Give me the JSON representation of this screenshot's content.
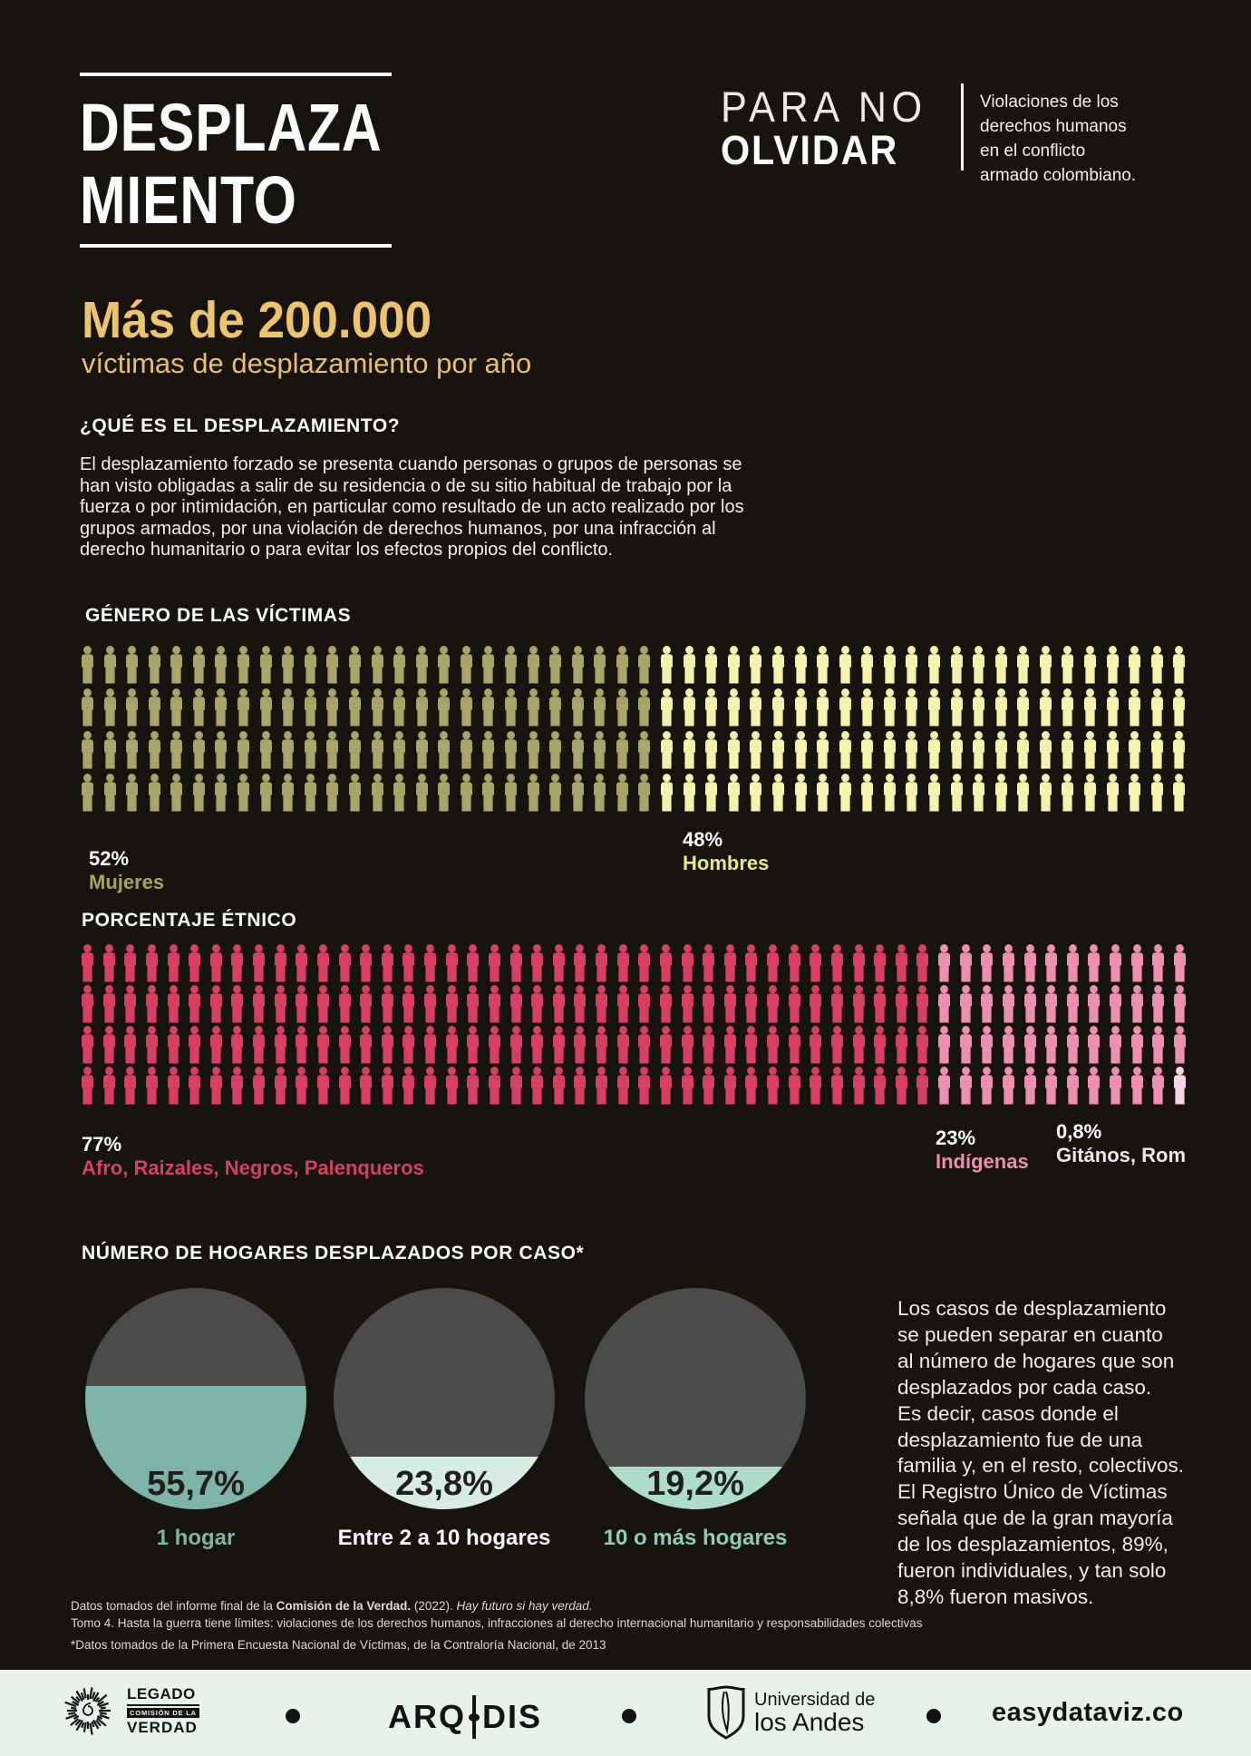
{
  "header": {
    "title_line1": "DESPLAZA",
    "title_line2": "MIENTO",
    "brand": {
      "line1": "PARA NO",
      "line2": "OLVIDAR",
      "tagline": "Violaciones de los\nderechos humanos\nen el conflicto\narmado colombiano."
    }
  },
  "intro": {
    "headline": "Más de 200.000",
    "subheadline": "víctimas de desplazamiento por año",
    "question_title": "¿QUÉ ES EL DESPLAZAMIENTO?",
    "paragraph": "El desplazamiento forzado se presenta cuando personas o grupos de personas se\nhan visto obligadas a salir de su residencia o de su sitio habitual de trabajo por la\nfuerza o por intimidación, en particular como resultado de un acto realizado por los\ngrupos armados, por una violación de derechos humanos, por una infracción al\nderecho humanitario o para evitar los efectos propios del conflicto."
  },
  "colors": {
    "background": "#17130f",
    "gold": "#ecc46f",
    "olive": "#a7a569",
    "pale_yellow": "#f4f3ae",
    "crimson": "#d74063",
    "pink": "#ed8fb1",
    "pale_pink": "#f6d4e5",
    "teal": "#7db4a7",
    "mint_light": "#d8ece4",
    "mint_mid": "#addccb",
    "circle_gray": "#4b4b4b",
    "footer_bg": "#e9f1eb"
  },
  "chart_data": [
    {
      "type": "pictograph",
      "title": "GÉNERO DE LAS VÍCTIMAS",
      "rows": 4,
      "icons_per_row": 50,
      "total_icons": 200,
      "per_row_counts": [
        26,
        24
      ],
      "series": [
        {
          "name": "Mujeres",
          "value_pct": 52,
          "value_label": "52%",
          "color": "#a7a569"
        },
        {
          "name": "Hombres",
          "value_pct": 48,
          "value_label": "48%",
          "color": "#f4f3ae"
        }
      ]
    },
    {
      "type": "pictograph",
      "title": "PORCENTAJE ÉTNICO",
      "rows": 4,
      "icons_per_row": 52,
      "total_icons": 208,
      "per_row_counts": [
        40,
        12
      ],
      "final_icon_series": 2,
      "series": [
        {
          "name": "Afro, Raizales, Negros, Palenqueros",
          "value_pct": 77,
          "value_label": "77%",
          "color": "#d74063"
        },
        {
          "name": "Indígenas",
          "value_pct": 23,
          "value_label": "23%",
          "color": "#ed8fb1"
        },
        {
          "name": "Gitános, Rom",
          "value_pct": 0.8,
          "value_label": "0,8%",
          "color": "#f6d4e5"
        }
      ]
    },
    {
      "type": "fill-circle",
      "title": "NÚMERO DE HOGARES DESPLAZADOS POR CASO*",
      "items": [
        {
          "label": "1 hogar",
          "value_label": "55,7%",
          "pct": 55.7,
          "fill": "#7db4a7",
          "caption_color": "#7db4a7"
        },
        {
          "label": "Entre 2 a 10 hogares",
          "value_label": "23,8%",
          "pct": 23.8,
          "fill": "#d8ece4",
          "caption_color": "#ffffff"
        },
        {
          "label": "10 o más hogares",
          "value_label": "19,2%",
          "pct": 19.2,
          "fill": "#addccb",
          "caption_color": "#8fcbb9"
        }
      ],
      "note": "Los casos de desplazamiento\nse pueden separar en cuanto\nal número de hogares que son\ndesplazados por cada caso.\nEs decir, casos donde el\ndesplazamiento fue de una\nfamilia y, en el resto, colectivos.\nEl Registro Único de Víctimas\nseñala que de la gran mayoría\nde los desplazamientos, 89%,\nfueron individuales, y tan solo\n8,8% fueron masivos."
    }
  ],
  "footnotes": {
    "line1_pre": "Datos tomados del informe final de la ",
    "line1_bold": "Comisión de la Verdad.",
    "line1_mid": " (2022). ",
    "line1_italic": "Hay futuro si hay verdad.",
    "line2": "Tomo 4. Hasta la guerra tiene límites: violaciones de los derechos humanos, infracciones al derecho internacional humanitario y responsabilidades colectivas",
    "line3": "*Datos tomados de la Primera Encuesta Nacional de Víctimas, de la Contraloría Nacional, de 2013"
  },
  "footer": {
    "legado_name": "LEGADO",
    "legado_badge": "COMISIÓN DE LA",
    "legado_verdad": "VERDAD",
    "arqdis_left": "ARQ",
    "arqdis_right": "DIS",
    "uniandes_line1": "Universidad de",
    "uniandes_line2": "los Andes",
    "easydataviz": "easydataviz.co"
  }
}
